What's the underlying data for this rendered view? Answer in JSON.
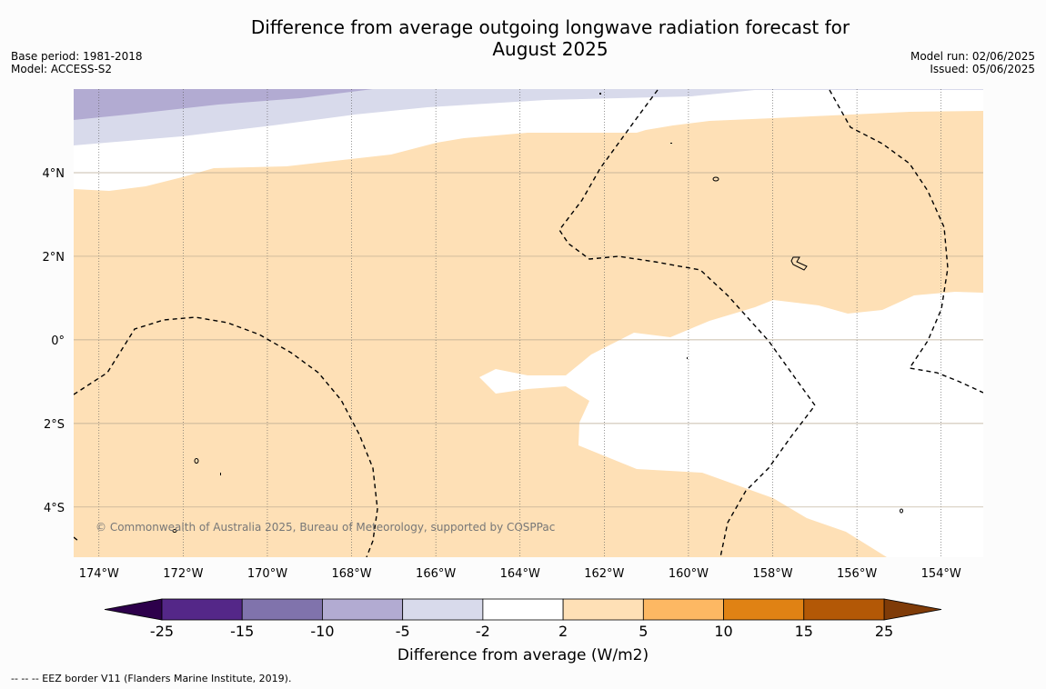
{
  "title_line1": "Difference from average outgoing longwave radiation forecast for",
  "title_line2": "August 2025",
  "base_period": "Base period: 1981-2018",
  "model": "Model: ACCESS-S2",
  "model_run": "Model run: 02/06/2025",
  "issued": "Issued: 05/06/2025",
  "copyright": "© Commonwealth of Australia 2025, Bureau of Meteorology, supported by COSPPac",
  "footnote": "--  --  -- EEZ border V11 (Flanders Marine Institute, 2019).",
  "map": {
    "lon_min": -174.6,
    "lon_max": -153.0,
    "lat_min": -5.2,
    "lat_max": 6.0,
    "lon_ticks": [
      -174,
      -172,
      -170,
      -168,
      -166,
      -164,
      -162,
      -160,
      -158,
      -156,
      -154
    ],
    "lon_tick_labels": [
      "174°W",
      "172°W",
      "170°W",
      "168°W",
      "166°W",
      "164°W",
      "162°W",
      "160°W",
      "158°W",
      "156°W",
      "154°W"
    ],
    "lat_ticks": [
      4,
      2,
      0,
      -2,
      -4
    ],
    "lat_tick_labels": [
      "4°N",
      "2°N",
      "0°",
      "2°S",
      "4°S"
    ]
  },
  "colorbar": {
    "title": "Difference from average (W/m2)",
    "boundaries": [
      -25,
      -15,
      -10,
      -5,
      -2,
      2,
      5,
      10,
      15,
      25
    ],
    "labels": [
      "-25",
      "-15",
      "-10",
      "-5",
      "-2",
      "2",
      "5",
      "10",
      "15",
      "25"
    ],
    "colors": [
      "#542788",
      "#8073ac",
      "#b2abd2",
      "#d8daeb",
      "#ffffff",
      "#fee0b6",
      "#fdb863",
      "#e08214",
      "#b35806"
    ],
    "under_color": "#2d004b",
    "over_color": "#7f3b08"
  }
}
